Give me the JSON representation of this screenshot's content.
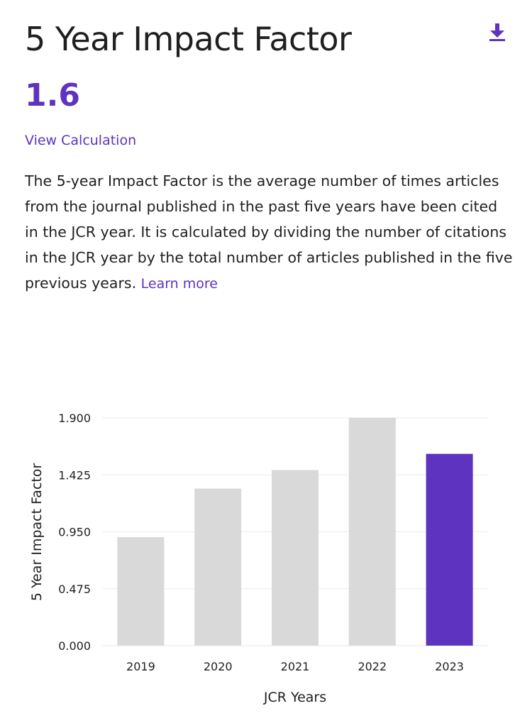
{
  "header": {
    "title": "5 Year Impact Factor",
    "download_icon": "download-icon"
  },
  "metric": {
    "value": "1.6",
    "view_calculation_label": "View Calculation"
  },
  "description": {
    "text": "The 5-year Impact Factor is the average number of times articles from the journal published in the past five years have been cited in the JCR year. It is calculated by dividing the number of citations in the JCR year by the total number of articles published in the five previous years.",
    "learn_more_label": "Learn more"
  },
  "colors": {
    "accent": "#5e33bf",
    "bar_default": "#d9d9d9",
    "bar_highlight": "#5e33bf",
    "gridline": "#ebebeb"
  },
  "chart_data": {
    "type": "bar",
    "categories": [
      "2019",
      "2020",
      "2021",
      "2022",
      "2023"
    ],
    "values": [
      0.905,
      1.31,
      1.465,
      1.9,
      1.6
    ],
    "highlight_category": "2023",
    "xlabel": "JCR Years",
    "ylabel": "5 Year Impact Factor",
    "ylim": [
      0,
      1.9
    ],
    "yticks": [
      "0.000",
      "0.475",
      "0.950",
      "1.425",
      "1.900"
    ],
    "grid": true
  }
}
